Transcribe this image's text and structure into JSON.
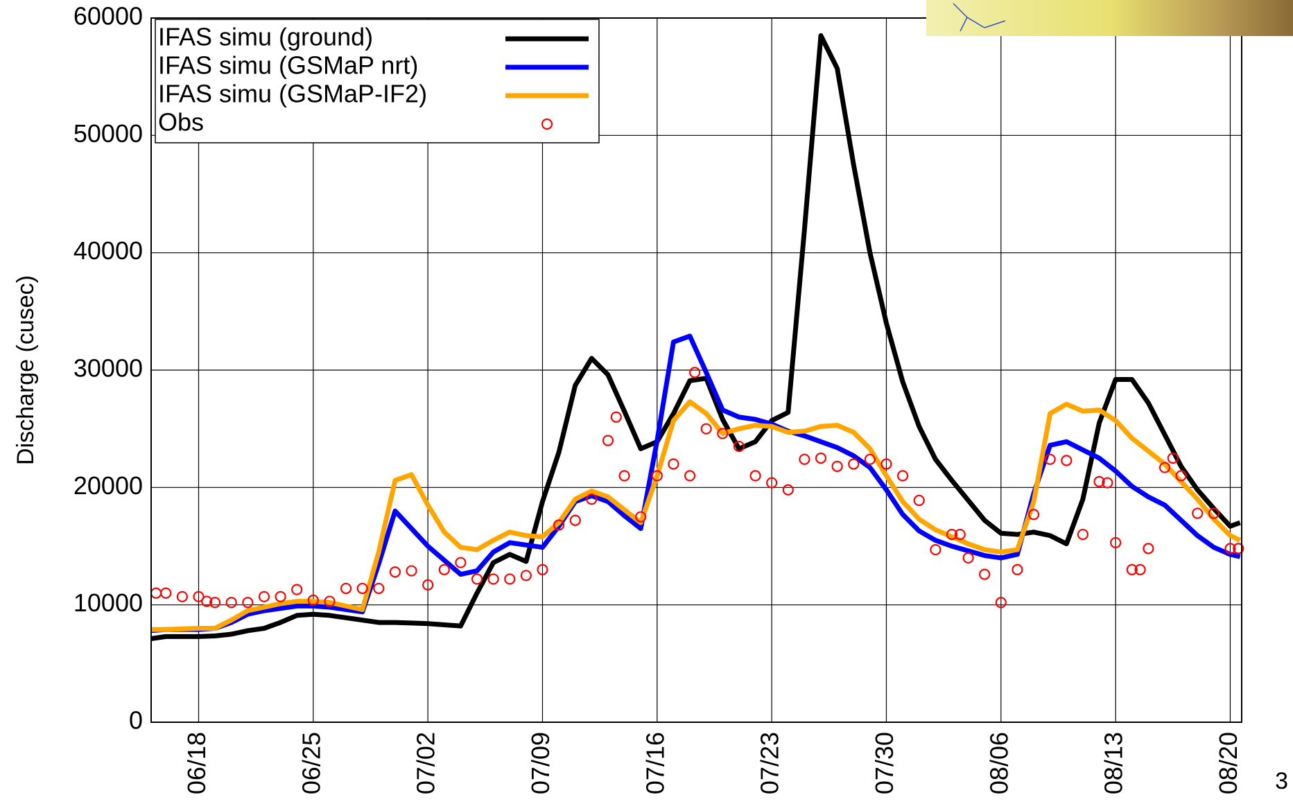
{
  "chart_data": {
    "type": "line",
    "ylabel": "Discharge (cusec)",
    "ylim": [
      0,
      60000
    ],
    "yticks": [
      0,
      10000,
      20000,
      30000,
      40000,
      50000,
      60000
    ],
    "xlim": [
      -2.9,
      63.7
    ],
    "xticks": [
      {
        "value": 0,
        "label": "06/18"
      },
      {
        "value": 7,
        "label": "06/25"
      },
      {
        "value": 14,
        "label": "07/02"
      },
      {
        "value": 21,
        "label": "07/09"
      },
      {
        "value": 28,
        "label": "07/16"
      },
      {
        "value": 35,
        "label": "07/23"
      },
      {
        "value": 42,
        "label": "07/30"
      },
      {
        "value": 49,
        "label": "08/06"
      },
      {
        "value": 56,
        "label": "08/13"
      },
      {
        "value": 63,
        "label": "08/20"
      }
    ],
    "grid": true,
    "legend": "upper left",
    "series": [
      {
        "name": "IFAS simu (ground)",
        "type": "line",
        "color": "#000000",
        "x": [
          -3,
          -2,
          0,
          1,
          2,
          3,
          4,
          5,
          6,
          7,
          8,
          9,
          10,
          11,
          12,
          13,
          14,
          15,
          16,
          17,
          18,
          19,
          20,
          21,
          22,
          23,
          24,
          25,
          26,
          27,
          28,
          29,
          30,
          31,
          32,
          33,
          34,
          35,
          36,
          37,
          38,
          39,
          40,
          41,
          42,
          43,
          44,
          45,
          46,
          47,
          48,
          49,
          50,
          51,
          52,
          53,
          54,
          55,
          56,
          57,
          58,
          59,
          60,
          61,
          62,
          63,
          63.6
        ],
        "values": [
          7100,
          7300,
          7300,
          7350,
          7500,
          7800,
          8000,
          8500,
          9100,
          9200,
          9100,
          8900,
          8700,
          8500,
          8500,
          8450,
          8400,
          8300,
          8200,
          11000,
          13600,
          14300,
          13700,
          18800,
          23000,
          28700,
          31000,
          29600,
          26500,
          23300,
          23900,
          26300,
          29100,
          29300,
          25800,
          23300,
          23900,
          25700,
          26400,
          42000,
          58500,
          55700,
          47500,
          40000,
          34000,
          29000,
          25200,
          22400,
          20600,
          18900,
          17200,
          16100,
          16000,
          16200,
          15900,
          15200,
          19000,
          25500,
          29200,
          29200,
          27200,
          24500,
          21800,
          19800,
          18200,
          16700,
          17000
        ]
      },
      {
        "name": "IFAS simu (GSMaP nrt)",
        "type": "line",
        "color": "#0000ff",
        "x": [
          -3,
          -2,
          0,
          1,
          2,
          3,
          4,
          5,
          6,
          7,
          8,
          9,
          10,
          11,
          12,
          13,
          14,
          15,
          16,
          17,
          18,
          19,
          20,
          21,
          22,
          23,
          24,
          25,
          26,
          27,
          28,
          29,
          30,
          31,
          32,
          33,
          34,
          35,
          36,
          37,
          38,
          39,
          40,
          41,
          42,
          43,
          44,
          45,
          46,
          47,
          48,
          49,
          50,
          51,
          52,
          53,
          54,
          55,
          56,
          57,
          58,
          59,
          60,
          61,
          62,
          63,
          63.6
        ],
        "values": [
          7800,
          7900,
          7900,
          8000,
          8500,
          9200,
          9500,
          9700,
          9900,
          9900,
          9800,
          9600,
          9400,
          13500,
          18000,
          16500,
          15000,
          13800,
          12600,
          12900,
          14500,
          15300,
          15100,
          14900,
          16700,
          18800,
          19300,
          18800,
          17600,
          16500,
          24000,
          32400,
          32900,
          29800,
          26600,
          26000,
          25800,
          25400,
          24800,
          24400,
          23900,
          23400,
          22700,
          21700,
          19800,
          17700,
          16300,
          15500,
          15000,
          14600,
          14200,
          14000,
          14300,
          19500,
          23600,
          23900,
          23200,
          22500,
          21400,
          20100,
          19200,
          18500,
          17200,
          15900,
          14900,
          14300,
          14100
        ]
      },
      {
        "name": "IFAS simu (GSMaP-IF2)",
        "type": "line",
        "color": "#ffa500",
        "x": [
          -3,
          -2,
          0,
          1,
          2,
          3,
          4,
          5,
          6,
          7,
          8,
          9,
          10,
          11,
          12,
          13,
          14,
          15,
          16,
          17,
          18,
          19,
          20,
          21,
          22,
          23,
          24,
          25,
          26,
          27,
          28,
          29,
          30,
          31,
          32,
          33,
          34,
          35,
          36,
          37,
          38,
          39,
          40,
          41,
          42,
          43,
          44,
          45,
          46,
          47,
          48,
          49,
          50,
          51,
          52,
          53,
          54,
          55,
          56,
          57,
          58,
          59,
          60,
          61,
          62,
          63,
          63.6
        ],
        "values": [
          7900,
          7900,
          8000,
          8000,
          8700,
          9500,
          9800,
          10100,
          10300,
          10300,
          10200,
          9900,
          9600,
          14500,
          20600,
          21100,
          18500,
          16200,
          14900,
          14700,
          15500,
          16200,
          15900,
          15800,
          17000,
          19000,
          19700,
          19200,
          18100,
          17000,
          21000,
          25700,
          27300,
          26300,
          24600,
          25000,
          25300,
          25200,
          24700,
          24800,
          25200,
          25300,
          24700,
          23300,
          21000,
          18800,
          17300,
          16400,
          15800,
          15200,
          14700,
          14500,
          14700,
          18800,
          26300,
          27100,
          26500,
          26600,
          25700,
          24200,
          23100,
          22000,
          20500,
          19000,
          17300,
          15900,
          15500
        ]
      },
      {
        "name": "Obs",
        "type": "scatter",
        "color": "#ff0000",
        "x": [
          -2.6,
          -2,
          -1,
          0,
          0.5,
          1,
          2,
          3,
          4,
          5,
          6,
          7,
          8,
          9,
          10,
          11,
          12,
          13,
          14,
          15,
          16,
          17,
          18,
          19,
          20,
          21,
          22,
          23,
          24,
          25,
          25.5,
          26,
          27,
          28,
          29,
          30,
          30.3,
          31,
          32,
          33,
          34,
          35,
          36,
          37,
          38,
          39,
          40,
          41,
          42,
          43,
          44,
          45,
          46,
          46.5,
          47,
          48,
          49,
          50,
          51,
          52,
          53,
          54,
          55,
          55.5,
          56,
          57,
          57.5,
          58,
          59,
          59.5,
          60,
          61,
          62,
          63,
          63.5
        ],
        "values": [
          11000,
          11000,
          10700,
          10700,
          10300,
          10200,
          10200,
          10200,
          10700,
          10700,
          11300,
          10400,
          10300,
          11400,
          11400,
          11400,
          12800,
          12900,
          11700,
          13000,
          13600,
          12200,
          12200,
          12200,
          12500,
          13000,
          16800,
          17200,
          19000,
          24000,
          26000,
          21000,
          17500,
          21000,
          22000,
          21000,
          29800,
          25000,
          24600,
          23500,
          21000,
          20400,
          19800,
          22400,
          22500,
          21800,
          22000,
          22400,
          22000,
          21000,
          18900,
          14700,
          16000,
          16000,
          14000,
          12600,
          10200,
          13000,
          17700,
          22400,
          22300,
          16000,
          20500,
          20400,
          15300,
          13000,
          13000,
          14800,
          21700,
          22500,
          21000,
          17800,
          17800,
          14800,
          14800
        ]
      }
    ]
  },
  "slide_number": "3"
}
